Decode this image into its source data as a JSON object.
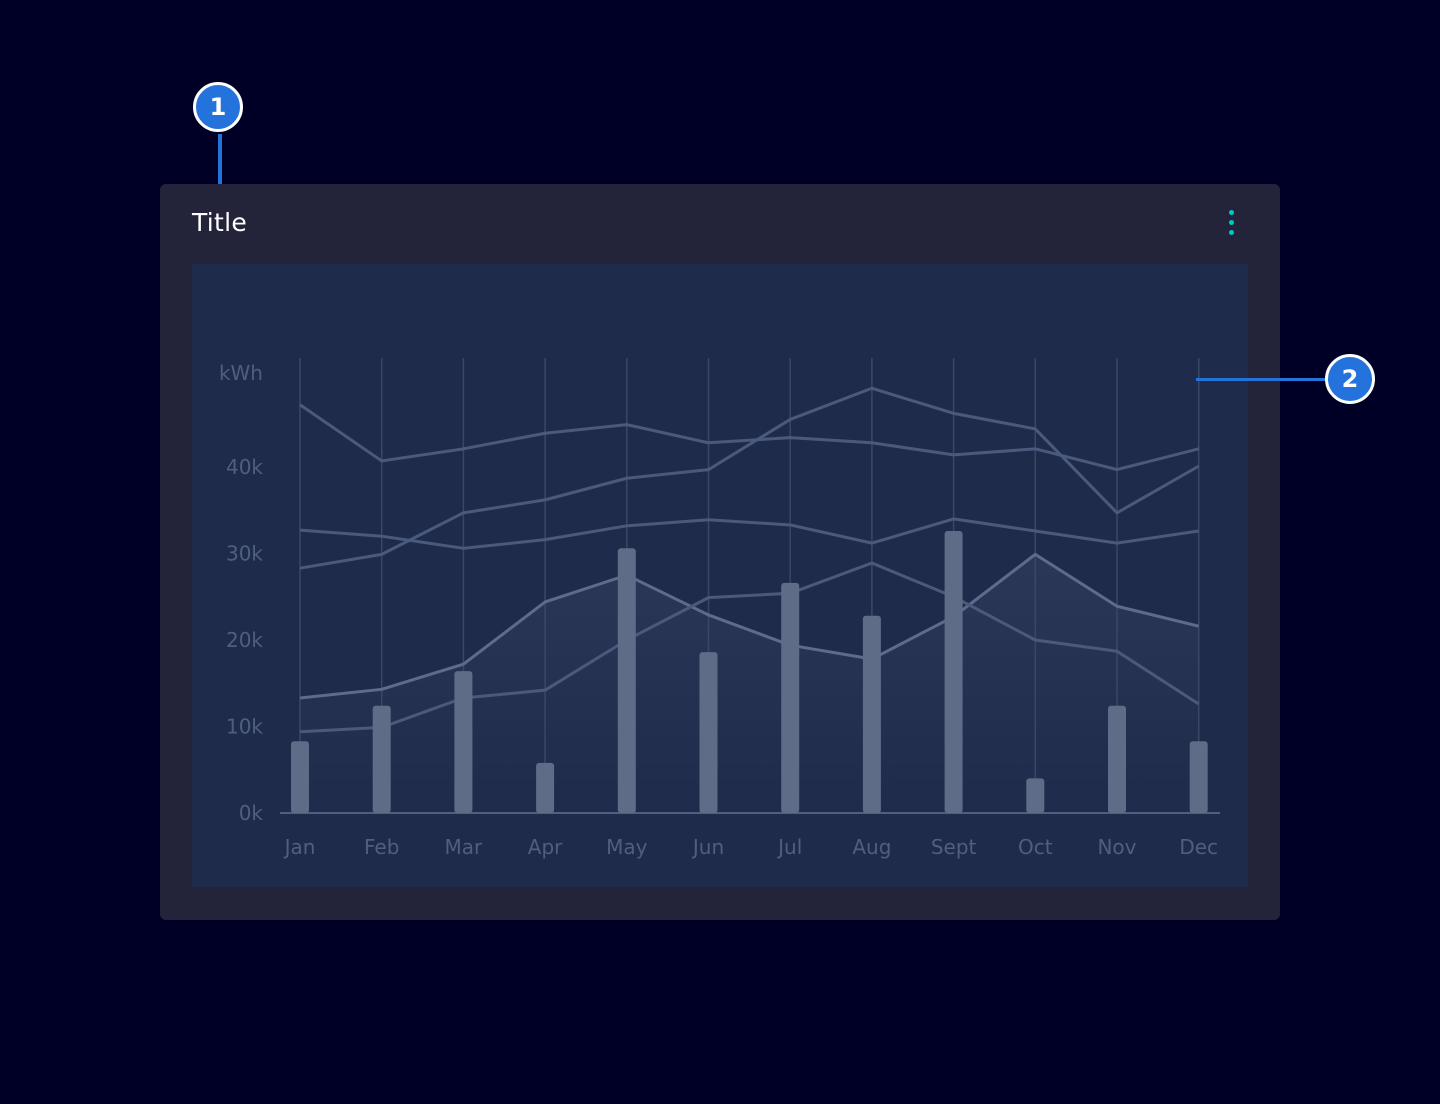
{
  "card": {
    "title": "Title",
    "menu_icon": "more-vertical-icon",
    "menu_color": "#00c8c8"
  },
  "annotations": [
    {
      "label": "1"
    },
    {
      "label": "2"
    }
  ],
  "colors": {
    "background": "#000026",
    "card": "#23243a",
    "plot": "#1f2b4b",
    "bar": "#5e6c88",
    "line": "#4a5a7c",
    "annotation": "#2472dc"
  },
  "chart_data": {
    "type": "bar+line",
    "ylabel": "kWh",
    "yticks": [
      "0k",
      "10k",
      "20k",
      "30k",
      "40k"
    ],
    "ylim": [
      0,
      50000
    ],
    "grid": "vertical",
    "categories": [
      "Jan",
      "Feb",
      "Mar",
      "Apr",
      "May",
      "Jun",
      "Jul",
      "Aug",
      "Sept",
      "Oct",
      "Nov",
      "Dec"
    ],
    "bars": [
      8300,
      12400,
      16400,
      5800,
      30600,
      18600,
      26600,
      22800,
      32600,
      4000,
      12400,
      8300
    ],
    "lines": [
      {
        "values": [
          47200,
          40700,
          42100,
          43900,
          44900,
          42800,
          43400,
          42800,
          41400,
          42100,
          39700,
          42100
        ]
      },
      {
        "values": [
          28300,
          29900,
          34700,
          36200,
          38700,
          39700,
          45500,
          49100,
          46200,
          44400,
          34700,
          40100
        ]
      },
      {
        "values": [
          32700,
          32000,
          30600,
          31600,
          33200,
          33900,
          33300,
          31200,
          34000,
          32600,
          31200,
          32600
        ]
      },
      {
        "values": [
          13300,
          14300,
          17200,
          24400,
          27500,
          22900,
          19400,
          17800,
          22700,
          29900,
          23900,
          21600
        ],
        "highlighted": true
      },
      {
        "values": [
          9400,
          9900,
          13300,
          14200,
          20000,
          24900,
          25400,
          28900,
          25000,
          20000,
          18700,
          12600
        ]
      }
    ]
  }
}
